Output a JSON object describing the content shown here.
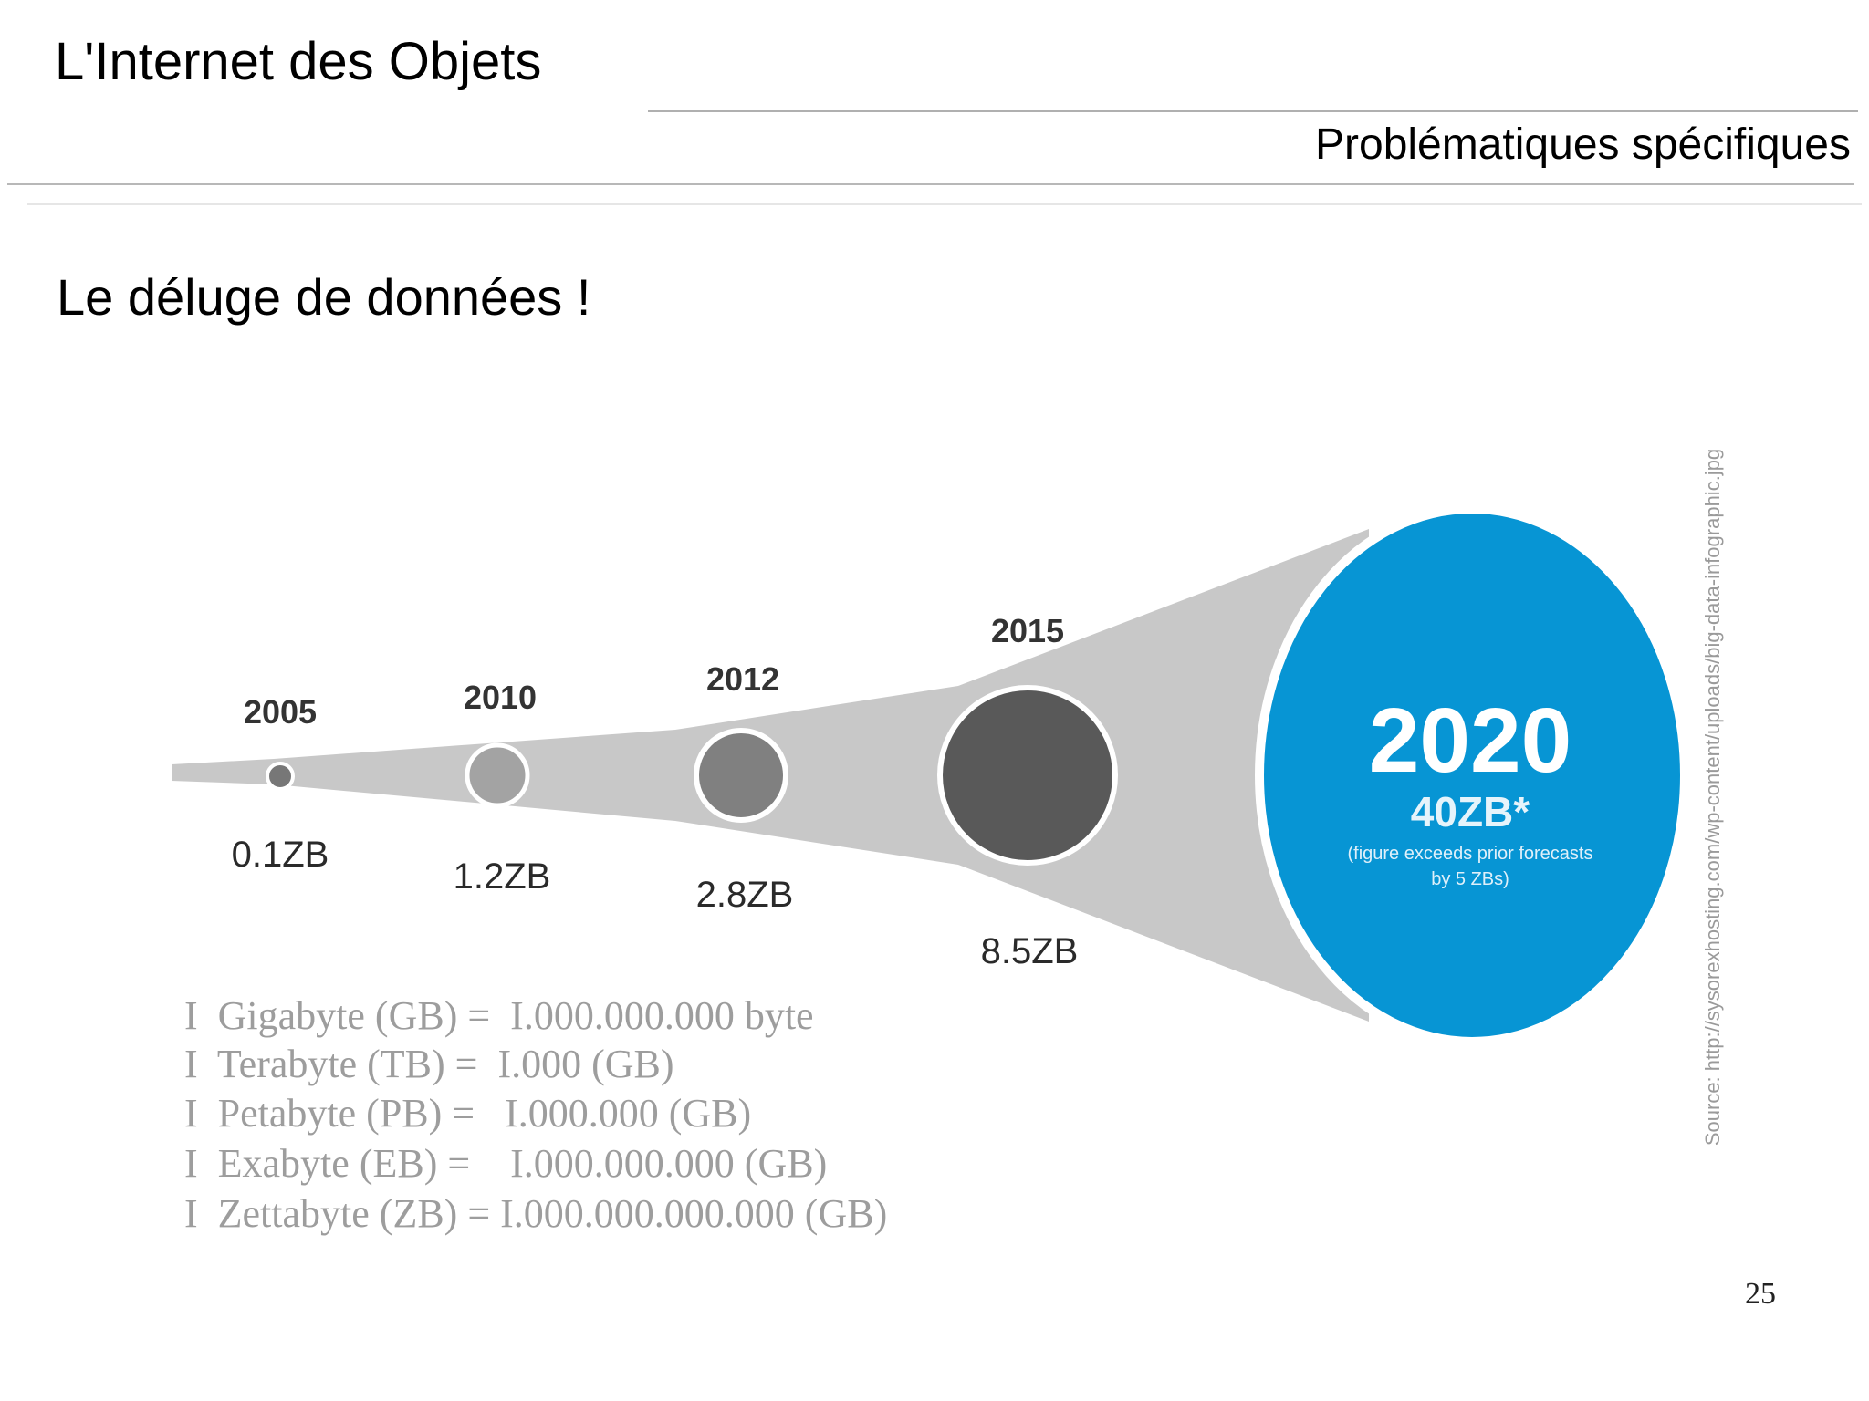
{
  "header": {
    "title": "L'Internet des Objets",
    "section": "Problématiques spécifiques"
  },
  "slide": {
    "heading": "Le déluge de données !",
    "page_number": "25"
  },
  "infographic": {
    "milestones": [
      {
        "year": "2005",
        "value": "0.1ZB"
      },
      {
        "year": "2010",
        "value": "1.2ZB"
      },
      {
        "year": "2012",
        "value": "2.8ZB"
      },
      {
        "year": "2015",
        "value": "8.5ZB"
      }
    ],
    "highlight": {
      "year": "2020",
      "value": "40ZB*",
      "note_line1": "(figure exceeds prior forecasts",
      "note_line2": "by 5 ZBs)"
    },
    "source": "Source: http://sysorexhosting.com/wp-content/uploads/big-data-infographic.jpg",
    "colors": {
      "funnel": "#c8c8c8",
      "circle_2005": "#777777",
      "circle_2010": "#a3a3a3",
      "circle_2012": "#808080",
      "circle_2015": "#595959",
      "highlight": "#0795d4"
    }
  },
  "legend": [
    "I  Gigabyte (GB) =  I.000.000.000 byte",
    "I  Terabyte (TB) =  I.000 (GB)",
    "I  Petabyte (PB) =   I.000.000 (GB)",
    "I  Exabyte (EB) =    I.000.000.000 (GB)",
    "I  Zettabyte (ZB) = I.000.000.000.000 (GB)"
  ]
}
